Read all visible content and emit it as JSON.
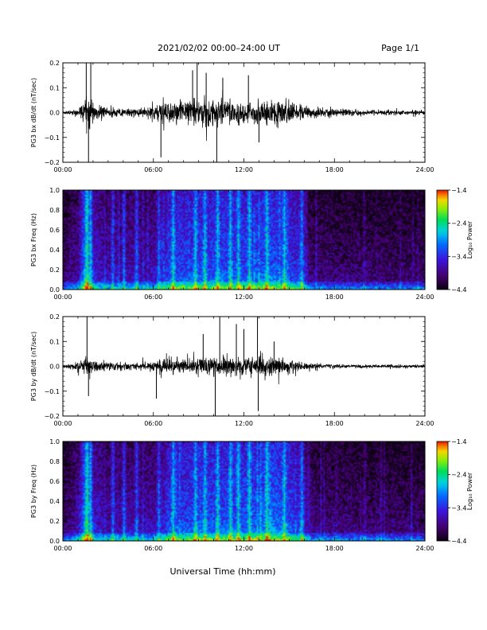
{
  "header": {
    "title": "2021/02/02  00:00–24:00 UT",
    "page": "Page 1/1"
  },
  "chart_data": [
    {
      "id": "bx-ts",
      "type": "line",
      "ylabel": "PG3 bx dB/dt (nT/sec)",
      "xlim": [
        0,
        24
      ],
      "ylim": [
        -0.2,
        0.2
      ],
      "x_ticks": [
        "00:00",
        "06:00",
        "12:00",
        "18:00",
        "24:00"
      ],
      "y_ticks": [
        "0.2",
        "0.1",
        "0.0",
        "−0.1",
        "−0.2"
      ],
      "y_tick_values": [
        0.2,
        0.1,
        0.0,
        -0.1,
        -0.2
      ],
      "activity_x": [
        0,
        0.5,
        1.0,
        1.3,
        1.6,
        1.8,
        2.2,
        3.0,
        4.0,
        5.0,
        6.0,
        6.5,
        7.0,
        8.0,
        9.0,
        10.0,
        11.0,
        12.0,
        13.0,
        14.0,
        15.0,
        16.0,
        17.0,
        18.0,
        19.0,
        20.0,
        21.0,
        22.0,
        23.0,
        24.0
      ],
      "activity_amp": [
        0.01,
        0.015,
        0.025,
        0.06,
        0.12,
        0.1,
        0.05,
        0.035,
        0.025,
        0.03,
        0.06,
        0.07,
        0.08,
        0.09,
        0.1,
        0.1,
        0.09,
        0.08,
        0.085,
        0.085,
        0.075,
        0.045,
        0.035,
        0.03,
        0.022,
        0.018,
        0.017,
        0.016,
        0.016,
        0.015
      ],
      "spikes": [
        {
          "x": 1.55,
          "y": 0.22
        },
        {
          "x": 1.7,
          "y": -0.2
        },
        {
          "x": 1.85,
          "y": 0.21
        },
        {
          "x": 6.5,
          "y": -0.18
        },
        {
          "x": 8.6,
          "y": 0.17
        },
        {
          "x": 8.9,
          "y": 0.21
        },
        {
          "x": 9.5,
          "y": 0.16
        },
        {
          "x": 10.2,
          "y": -0.2
        },
        {
          "x": 10.6,
          "y": 0.14
        },
        {
          "x": 12.3,
          "y": 0.15
        },
        {
          "x": 13.0,
          "y": -0.12
        }
      ]
    },
    {
      "id": "bx-spec",
      "type": "heatmap",
      "ylabel": "PG3 bx Freq (Hz)",
      "xlim": [
        0,
        24
      ],
      "ylim": [
        0,
        1.0
      ],
      "x_ticks": [
        "00:00",
        "06:00",
        "12:00",
        "18:00",
        "24:00"
      ],
      "y_ticks": [
        "1.0",
        "0.8",
        "0.6",
        "0.4",
        "0.2",
        "0.0"
      ],
      "y_tick_values": [
        1.0,
        0.8,
        0.6,
        0.4,
        0.2,
        0.0
      ],
      "colorbar_label": "Log₁₀ Power",
      "colorbar_ticks": [
        "−1.4",
        "−2.4",
        "−3.4",
        "−4.4"
      ],
      "colorbar_tick_values": [
        -1.4,
        -2.4,
        -3.4,
        -4.4
      ],
      "clim": [
        -4.4,
        -1.4
      ],
      "activity_x": [
        0,
        1.0,
        1.5,
        2.0,
        3.0,
        5.0,
        6.5,
        7.0,
        9.0,
        12.0,
        14.0,
        15.0,
        16.0,
        16.3,
        18.0,
        20.0,
        24.0
      ],
      "activity_level": [
        0.25,
        0.4,
        0.95,
        0.55,
        0.4,
        0.42,
        0.45,
        0.7,
        0.72,
        0.72,
        0.78,
        0.7,
        0.55,
        0.3,
        0.28,
        0.26,
        0.25
      ],
      "bursts": [
        1.55,
        1.8,
        3.3,
        4.0,
        4.8,
        6.3,
        7.3,
        8.7,
        9.4,
        10.2,
        11.0,
        11.6,
        12.3,
        13.5,
        14.6,
        15.8
      ]
    },
    {
      "id": "by-ts",
      "type": "line",
      "ylabel": "PG3 by dB/dt (nT/sec)",
      "xlim": [
        0,
        24
      ],
      "ylim": [
        -0.2,
        0.2
      ],
      "x_ticks": [
        "00:00",
        "06:00",
        "12:00",
        "18:00",
        "24:00"
      ],
      "y_ticks": [
        "0.2",
        "0.1",
        "0.0",
        "−0.1",
        "−0.2"
      ],
      "y_tick_values": [
        0.2,
        0.1,
        0.0,
        -0.1,
        -0.2
      ],
      "activity_x": [
        0,
        0.5,
        1.0,
        1.3,
        1.6,
        1.8,
        2.2,
        3.0,
        4.0,
        5.0,
        6.0,
        6.5,
        7.0,
        8.0,
        9.0,
        10.0,
        11.0,
        12.0,
        13.0,
        14.0,
        15.0,
        16.0,
        17.0,
        18.0,
        19.0,
        20.0,
        21.0,
        22.0,
        23.0,
        24.0
      ],
      "activity_amp": [
        0.01,
        0.015,
        0.025,
        0.06,
        0.09,
        0.08,
        0.045,
        0.035,
        0.028,
        0.025,
        0.035,
        0.05,
        0.055,
        0.06,
        0.065,
        0.07,
        0.075,
        0.07,
        0.07,
        0.065,
        0.05,
        0.025,
        0.018,
        0.015,
        0.013,
        0.012,
        0.012,
        0.012,
        0.011,
        0.011
      ],
      "spikes": [
        {
          "x": 1.6,
          "y": 0.21
        },
        {
          "x": 1.7,
          "y": -0.12
        },
        {
          "x": 6.2,
          "y": -0.13
        },
        {
          "x": 9.3,
          "y": 0.13
        },
        {
          "x": 10.1,
          "y": -0.2
        },
        {
          "x": 10.4,
          "y": 0.21
        },
        {
          "x": 11.5,
          "y": 0.17
        },
        {
          "x": 12.0,
          "y": 0.15
        },
        {
          "x": 12.9,
          "y": 0.2
        },
        {
          "x": 12.95,
          "y": -0.18
        },
        {
          "x": 14.0,
          "y": 0.1
        }
      ]
    },
    {
      "id": "by-spec",
      "type": "heatmap",
      "ylabel": "PG3 by Freq (Hz)",
      "xlim": [
        0,
        24
      ],
      "ylim": [
        0,
        1.0
      ],
      "x_ticks": [
        "00:00",
        "06:00",
        "12:00",
        "18:00",
        "24:00"
      ],
      "y_ticks": [
        "1.0",
        "0.8",
        "0.6",
        "0.4",
        "0.2",
        "0.0"
      ],
      "y_tick_values": [
        1.0,
        0.8,
        0.6,
        0.4,
        0.2,
        0.0
      ],
      "colorbar_label": "Log₁₀ Power",
      "colorbar_ticks": [
        "−1.4",
        "−2.4",
        "−3.4",
        "−4.4"
      ],
      "colorbar_tick_values": [
        -1.4,
        -2.4,
        -3.4,
        -4.4
      ],
      "clim": [
        -4.4,
        -1.4
      ],
      "activity_x": [
        0,
        1.0,
        1.5,
        2.0,
        3.0,
        5.0,
        6.5,
        7.0,
        9.0,
        12.0,
        14.0,
        15.0,
        16.0,
        16.3,
        18.0,
        20.0,
        24.0
      ],
      "activity_level": [
        0.25,
        0.4,
        0.95,
        0.55,
        0.4,
        0.42,
        0.45,
        0.7,
        0.72,
        0.75,
        0.82,
        0.72,
        0.55,
        0.32,
        0.3,
        0.27,
        0.25
      ],
      "bursts": [
        1.55,
        1.8,
        3.3,
        4.0,
        4.8,
        6.3,
        7.3,
        8.7,
        9.4,
        10.2,
        11.0,
        11.6,
        12.3,
        13.5,
        14.6,
        15.8
      ]
    }
  ],
  "footer": {
    "xtitle": "Universal Time (hh:mm)"
  },
  "colors": {
    "trace": "#000000",
    "axis": "#000000",
    "background": "#ffffff"
  }
}
